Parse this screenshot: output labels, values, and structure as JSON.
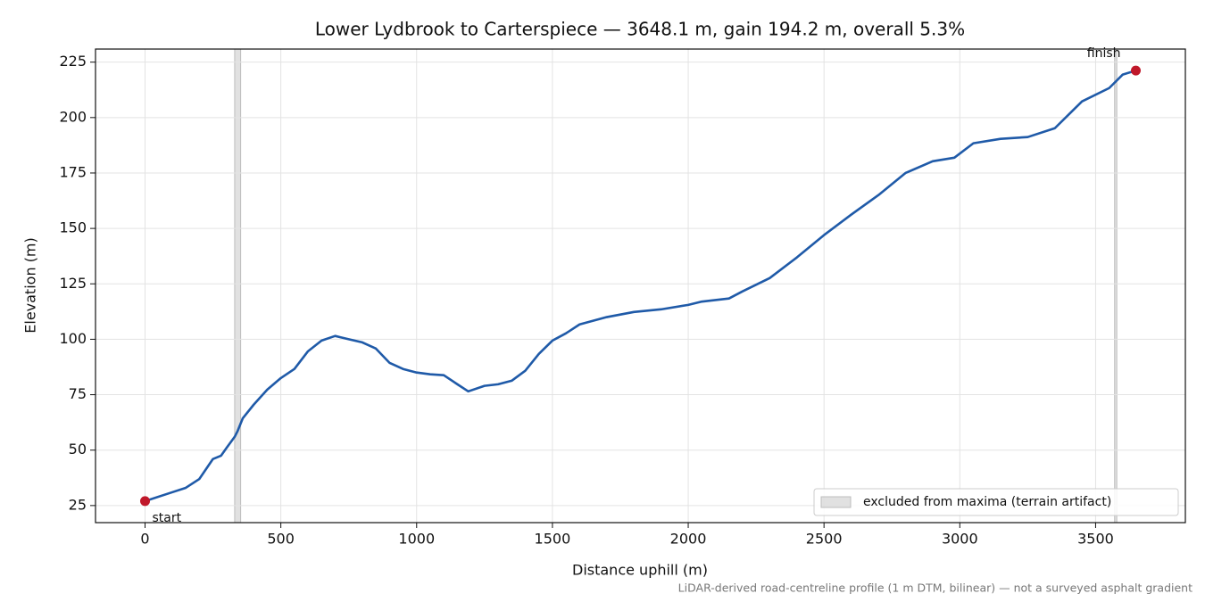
{
  "chart_data": {
    "type": "line",
    "title": "Lower Lydbrook to Carterspiece — 3648.1 m, gain 194.2 m, overall 5.3%",
    "xlabel": "Distance uphill (m)",
    "ylabel": "Elevation (m)",
    "note": "LiDAR-derived road-centreline profile (1 m DTM, bilinear) — not a surveyed asphalt gradient",
    "x": [
      0,
      100,
      150,
      200,
      250,
      280,
      300,
      330,
      340,
      360,
      400,
      450,
      500,
      550,
      600,
      650,
      700,
      750,
      800,
      850,
      900,
      950,
      1000,
      1050,
      1100,
      1150,
      1190,
      1250,
      1300,
      1350,
      1400,
      1450,
      1500,
      1550,
      1600,
      1700,
      1800,
      1900,
      2000,
      2050,
      2150,
      2200,
      2300,
      2400,
      2500,
      2600,
      2700,
      2800,
      2900,
      2980,
      3050,
      3150,
      3250,
      3350,
      3450,
      3550,
      3600,
      3648.1
    ],
    "values": [
      27,
      31,
      33,
      37,
      46,
      47.5,
      51,
      56,
      58.4,
      64.4,
      70.5,
      77.3,
      82.5,
      86.6,
      94.6,
      99.4,
      101.5,
      100,
      98.6,
      95.8,
      89.4,
      86.6,
      85,
      84.2,
      83.8,
      79.7,
      76.5,
      79,
      79.7,
      81.3,
      85.8,
      93.4,
      99.4,
      102.7,
      106.7,
      110,
      112.3,
      113.5,
      115.5,
      117,
      118.4,
      121.6,
      127.6,
      136.9,
      147,
      156.2,
      165,
      175,
      180.3,
      181.9,
      188.4,
      190.4,
      191.2,
      195.2,
      207.3,
      213.3,
      219.4,
      221.2
    ],
    "color": "#1f5aa8",
    "endpoint_color": "#c0182a",
    "annotations": [
      "start",
      "finish"
    ],
    "excluded_spans": [
      [
        330,
        352
      ],
      [
        3570,
        3578
      ]
    ],
    "excluded_color": "#bdbdbd",
    "excluded_label": "excluded from maxima (terrain artifact)",
    "legend": "lower right",
    "grid": true,
    "xlim": [
      -182.4,
      3830.5
    ],
    "ylim": [
      17.3,
      230.9
    ],
    "xticks": [
      0,
      500,
      1000,
      1500,
      2000,
      2500,
      3000,
      3500
    ],
    "yticks": [
      25,
      50,
      75,
      100,
      125,
      150,
      175,
      200,
      225
    ]
  }
}
